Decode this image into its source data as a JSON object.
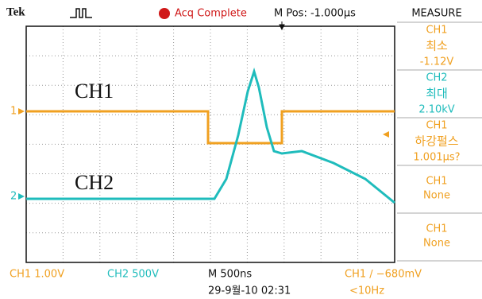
{
  "header": {
    "brand": "Tek",
    "status": "Acq Complete",
    "position": "M Pos: -1.000μs"
  },
  "plot": {
    "labels": [
      "CH1",
      "CH2"
    ],
    "markers": [
      "1",
      "2"
    ]
  },
  "measure": {
    "title": "MEASURE",
    "items": [
      {
        "source": "CH1",
        "label": "최소",
        "value": "-1.12V"
      },
      {
        "source": "CH2",
        "label": "최대",
        "value": "2.10kV"
      },
      {
        "source": "CH1",
        "label": "하강펄스",
        "value": "1.001μs?"
      },
      {
        "source": "CH1",
        "value": "None"
      },
      {
        "source": "CH1",
        "value": "None"
      }
    ]
  },
  "footer": {
    "ch1_scale": "CH1  1.00V",
    "ch2_scale": "CH2  500V",
    "timebase": "M 500ns",
    "trigger": "CH1 ∕ −680mV",
    "datetime": "29-9월-10 02:31",
    "frequency": "<10Hz"
  }
}
